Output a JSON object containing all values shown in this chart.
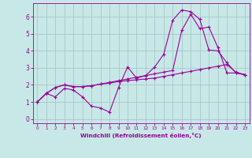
{
  "background_color": "#c8e8e8",
  "grid_color": "#a8c8c8",
  "line_color": "#990099",
  "xlabel": "Windchill (Refroidissement éolien,°C)",
  "xlabel_color": "#990099",
  "xtick_labels": [
    "0",
    "1",
    "2",
    "3",
    "4",
    "5",
    "6",
    "7",
    "8",
    "9",
    "10",
    "11",
    "12",
    "13",
    "14",
    "15",
    "16",
    "17",
    "18",
    "19",
    "20",
    "21",
    "22",
    "23"
  ],
  "ylim": [
    -0.25,
    6.8
  ],
  "xlim": [
    -0.5,
    23.5
  ],
  "ytick_vals": [
    0,
    1,
    2,
    3,
    4,
    5,
    6
  ],
  "line1_x": [
    0,
    1,
    2,
    3,
    4,
    5,
    6,
    7,
    8,
    9,
    10,
    11,
    12,
    13,
    14,
    15,
    16,
    17,
    18,
    19,
    20,
    21,
    22,
    23
  ],
  "line1_y": [
    1.0,
    1.5,
    1.3,
    1.8,
    1.7,
    1.3,
    0.75,
    0.65,
    0.4,
    1.85,
    3.05,
    2.4,
    2.55,
    3.05,
    3.8,
    5.8,
    6.4,
    6.3,
    5.85,
    4.05,
    4.0,
    3.3,
    2.7,
    2.6
  ],
  "line2_x": [
    0,
    1,
    2,
    3,
    4,
    5,
    6,
    7,
    8,
    9,
    10,
    11,
    12,
    13,
    14,
    15,
    16,
    17,
    18,
    19,
    20,
    21,
    22,
    23
  ],
  "line2_y": [
    1.0,
    1.5,
    1.85,
    2.0,
    1.9,
    1.9,
    1.95,
    2.05,
    2.1,
    2.2,
    2.25,
    2.3,
    2.35,
    2.4,
    2.5,
    2.6,
    2.7,
    2.8,
    2.9,
    3.0,
    3.1,
    3.2,
    2.75,
    2.6
  ],
  "line3_x": [
    0,
    1,
    2,
    3,
    4,
    5,
    6,
    7,
    8,
    9,
    10,
    11,
    12,
    13,
    14,
    15,
    16,
    17,
    18,
    19,
    20,
    21,
    22,
    23
  ],
  "line3_y": [
    1.0,
    1.5,
    1.85,
    2.0,
    1.9,
    1.9,
    1.95,
    2.05,
    2.15,
    2.25,
    2.35,
    2.45,
    2.55,
    2.65,
    2.75,
    2.85,
    5.2,
    6.15,
    5.3,
    5.4,
    4.2,
    2.7,
    2.7,
    2.6
  ],
  "figsize": [
    3.2,
    2.0
  ],
  "dpi": 100
}
